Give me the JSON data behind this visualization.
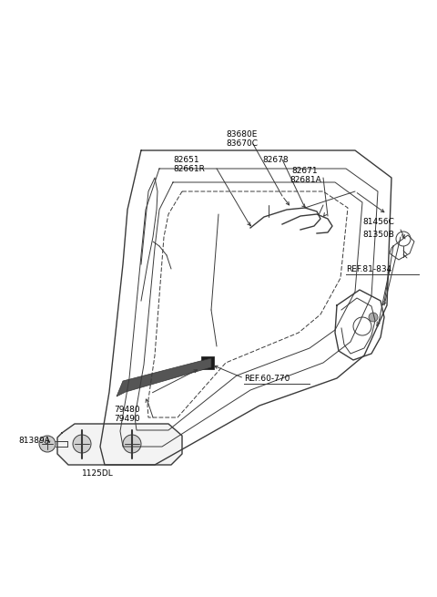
{
  "bg_color": "#ffffff",
  "line_color": "#3a3a3a",
  "label_color": "#000000",
  "figsize": [
    4.8,
    6.55
  ],
  "dpi": 100,
  "xlim": [
    0,
    480
  ],
  "ylim": [
    0,
    655
  ]
}
